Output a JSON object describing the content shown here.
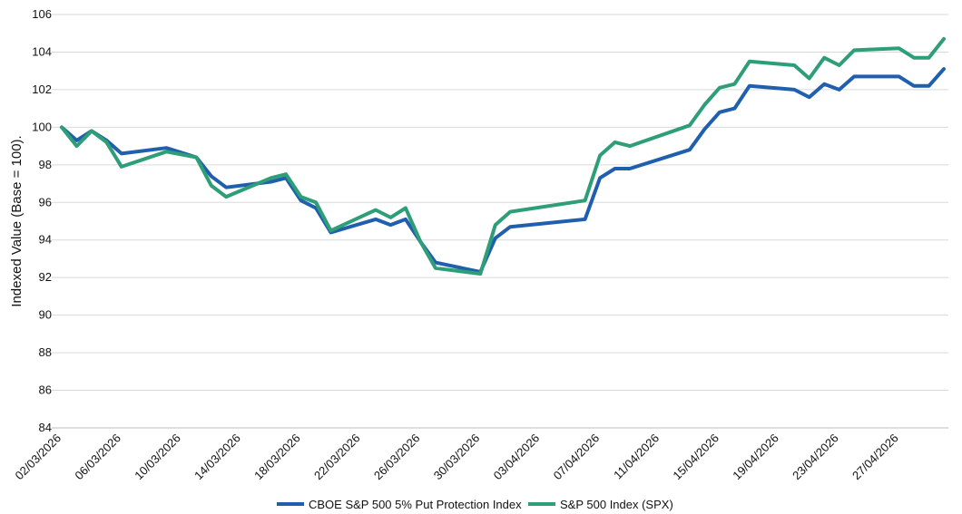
{
  "chart_data": {
    "type": "line",
    "title": "",
    "xlabel": "",
    "ylabel": "Indexed Value (Base = 100).",
    "ylim": [
      84,
      106
    ],
    "yticks": [
      84,
      86,
      88,
      90,
      92,
      94,
      96,
      98,
      100,
      102,
      104,
      106
    ],
    "xlim": [
      "2026-03-02",
      "2026-04-30"
    ],
    "xtick_labels": [
      "02/03/2026",
      "06/03/2026",
      "10/03/2026",
      "14/03/2026",
      "18/03/2026",
      "22/03/2026",
      "26/03/2026",
      "30/03/2026",
      "03/04/2026",
      "07/04/2026",
      "11/04/2026",
      "15/04/2026",
      "19/04/2026",
      "23/04/2026",
      "27/04/2026"
    ],
    "grid": "horizontal",
    "legend_position": "bottom",
    "series": [
      {
        "name": "CBOE S&P 500 5% Put Protection Index",
        "color": "#1F5FAD",
        "points": [
          [
            "2026-03-02",
            100.0
          ],
          [
            "2026-03-03",
            99.3
          ],
          [
            "2026-03-04",
            99.8
          ],
          [
            "2026-03-05",
            99.3
          ],
          [
            "2026-03-06",
            98.6
          ],
          [
            "2026-03-09",
            98.9
          ],
          [
            "2026-03-11",
            98.4
          ],
          [
            "2026-03-12",
            97.4
          ],
          [
            "2026-03-13",
            96.8
          ],
          [
            "2026-03-16",
            97.1
          ],
          [
            "2026-03-17",
            97.3
          ],
          [
            "2026-03-18",
            96.1
          ],
          [
            "2026-03-19",
            95.7
          ],
          [
            "2026-03-20",
            94.4
          ],
          [
            "2026-03-23",
            95.1
          ],
          [
            "2026-03-24",
            94.8
          ],
          [
            "2026-03-25",
            95.1
          ],
          [
            "2026-03-26",
            93.9
          ],
          [
            "2026-03-27",
            92.8
          ],
          [
            "2026-03-30",
            92.3
          ],
          [
            "2026-03-31",
            94.1
          ],
          [
            "2026-04-01",
            94.7
          ],
          [
            "2026-04-06",
            95.1
          ],
          [
            "2026-04-07",
            97.3
          ],
          [
            "2026-04-08",
            97.8
          ],
          [
            "2026-04-09",
            97.8
          ],
          [
            "2026-04-13",
            98.8
          ],
          [
            "2026-04-14",
            99.9
          ],
          [
            "2026-04-15",
            100.8
          ],
          [
            "2026-04-16",
            101.0
          ],
          [
            "2026-04-17",
            102.2
          ],
          [
            "2026-04-20",
            102.0
          ],
          [
            "2026-04-21",
            101.6
          ],
          [
            "2026-04-22",
            102.3
          ],
          [
            "2026-04-23",
            102.0
          ],
          [
            "2026-04-24",
            102.7
          ],
          [
            "2026-04-27",
            102.7
          ],
          [
            "2026-04-28",
            102.2
          ],
          [
            "2026-04-29",
            102.2
          ],
          [
            "2026-04-30",
            103.1
          ]
        ]
      },
      {
        "name": "S&P 500 Index (SPX)",
        "color": "#2E9E77",
        "points": [
          [
            "2026-03-02",
            100.0
          ],
          [
            "2026-03-03",
            99.0
          ],
          [
            "2026-03-04",
            99.8
          ],
          [
            "2026-03-05",
            99.2
          ],
          [
            "2026-03-06",
            97.9
          ],
          [
            "2026-03-09",
            98.7
          ],
          [
            "2026-03-11",
            98.4
          ],
          [
            "2026-03-12",
            96.9
          ],
          [
            "2026-03-13",
            96.3
          ],
          [
            "2026-03-16",
            97.3
          ],
          [
            "2026-03-17",
            97.5
          ],
          [
            "2026-03-18",
            96.3
          ],
          [
            "2026-03-19",
            96.0
          ],
          [
            "2026-03-20",
            94.5
          ],
          [
            "2026-03-23",
            95.6
          ],
          [
            "2026-03-24",
            95.2
          ],
          [
            "2026-03-25",
            95.7
          ],
          [
            "2026-03-26",
            93.9
          ],
          [
            "2026-03-27",
            92.5
          ],
          [
            "2026-03-30",
            92.2
          ],
          [
            "2026-03-31",
            94.8
          ],
          [
            "2026-04-01",
            95.5
          ],
          [
            "2026-04-06",
            96.1
          ],
          [
            "2026-04-07",
            98.5
          ],
          [
            "2026-04-08",
            99.2
          ],
          [
            "2026-04-09",
            99.0
          ],
          [
            "2026-04-13",
            100.1
          ],
          [
            "2026-04-14",
            101.2
          ],
          [
            "2026-04-15",
            102.1
          ],
          [
            "2026-04-16",
            102.3
          ],
          [
            "2026-04-17",
            103.5
          ],
          [
            "2026-04-20",
            103.3
          ],
          [
            "2026-04-21",
            102.6
          ],
          [
            "2026-04-22",
            103.7
          ],
          [
            "2026-04-23",
            103.3
          ],
          [
            "2026-04-24",
            104.1
          ],
          [
            "2026-04-27",
            104.2
          ],
          [
            "2026-04-28",
            103.7
          ],
          [
            "2026-04-29",
            103.7
          ],
          [
            "2026-04-30",
            104.7
          ]
        ]
      }
    ]
  }
}
